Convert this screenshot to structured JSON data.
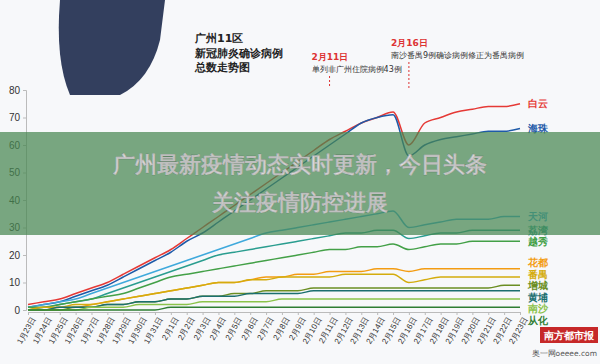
{
  "chart_data": {
    "type": "line",
    "title": "广州11区",
    "subtitle": [
      "新冠肺炎确诊病例",
      "总数走势图"
    ],
    "categories": [
      "1月23日",
      "1月24日",
      "1月25日",
      "1月26日",
      "1月27日",
      "1月28日",
      "1月29日",
      "1月30日",
      "1月31日",
      "2月1日",
      "2月2日",
      "2月3日",
      "2月4日",
      "2月5日",
      "2月6日",
      "2月7日",
      "2月8日",
      "2月9日",
      "2月10日",
      "2月11日",
      "2月12日",
      "2月13日",
      "2月14日",
      "2月15日",
      "2月16日",
      "2月17日",
      "2月18日",
      "2月19日",
      "2月20日",
      "2月21日",
      "2月22日",
      "2月23日"
    ],
    "series": [
      {
        "name": "白云",
        "color": "#e53935",
        "values": [
          2,
          3,
          4,
          6,
          8,
          10,
          13,
          16,
          19,
          22,
          26,
          30,
          34,
          38,
          42,
          46,
          50,
          54,
          58,
          62,
          65,
          68,
          70,
          72,
          60,
          68,
          70,
          72,
          73,
          74,
          74,
          75
        ]
      },
      {
        "name": "海珠",
        "color": "#1e5aa8",
        "values": [
          1,
          2,
          3,
          5,
          7,
          9,
          12,
          15,
          18,
          21,
          25,
          28,
          32,
          36,
          40,
          44,
          48,
          52,
          56,
          60,
          64,
          68,
          70,
          71,
          56,
          60,
          62,
          63,
          64,
          65,
          65,
          66
        ]
      },
      {
        "name": "天河",
        "color": "#3fa9dc",
        "values": [
          1,
          2,
          3,
          4,
          6,
          8,
          10,
          12,
          14,
          16,
          18,
          20,
          22,
          24,
          26,
          28,
          29,
          30,
          31,
          32,
          33,
          34,
          35,
          36,
          30,
          31,
          32,
          33,
          33,
          33,
          34,
          34
        ]
      },
      {
        "name": "荔湾",
        "color": "#2a9d8f",
        "values": [
          0,
          1,
          2,
          3,
          4,
          6,
          8,
          10,
          12,
          14,
          16,
          18,
          20,
          21,
          22,
          23,
          24,
          25,
          26,
          27,
          28,
          28,
          29,
          29,
          26,
          27,
          28,
          28,
          29,
          29,
          29,
          29
        ]
      },
      {
        "name": "越秀",
        "color": "#43a047",
        "values": [
          1,
          1,
          2,
          3,
          4,
          5,
          6,
          8,
          10,
          12,
          13,
          14,
          15,
          16,
          17,
          18,
          19,
          20,
          21,
          22,
          22,
          23,
          23,
          24,
          22,
          23,
          24,
          24,
          25,
          25,
          25,
          25
        ]
      },
      {
        "name": "花都",
        "color": "#f39c12",
        "values": [
          0,
          0,
          1,
          1,
          2,
          3,
          4,
          5,
          6,
          7,
          8,
          9,
          10,
          10,
          11,
          12,
          12,
          13,
          13,
          14,
          14,
          14,
          15,
          15,
          14,
          15,
          15,
          15,
          15,
          15,
          15,
          15
        ]
      },
      {
        "name": "番禺",
        "color": "#d4ac0d",
        "values": [
          0,
          1,
          1,
          2,
          2,
          3,
          4,
          5,
          6,
          7,
          8,
          9,
          10,
          10,
          11,
          11,
          12,
          12,
          12,
          12,
          13,
          13,
          13,
          13,
          10,
          11,
          12,
          12,
          12,
          12,
          12,
          12
        ]
      },
      {
        "name": "增城",
        "color": "#6b8e23",
        "values": [
          0,
          0,
          0,
          1,
          1,
          2,
          2,
          3,
          3,
          4,
          4,
          5,
          5,
          6,
          6,
          7,
          7,
          7,
          8,
          8,
          8,
          8,
          8,
          8,
          8,
          8,
          8,
          8,
          8,
          8,
          9,
          9
        ]
      },
      {
        "name": "黄埔",
        "color": "#1b6f6f",
        "values": [
          0,
          0,
          1,
          1,
          1,
          2,
          2,
          3,
          3,
          4,
          4,
          5,
          5,
          5,
          6,
          6,
          6,
          6,
          7,
          7,
          7,
          7,
          7,
          7,
          7,
          7,
          7,
          7,
          7,
          7,
          7,
          7
        ]
      },
      {
        "name": "南沙",
        "color": "#8bc34a",
        "values": [
          0,
          0,
          0,
          0,
          1,
          1,
          1,
          2,
          2,
          2,
          2,
          3,
          3,
          3,
          3,
          3,
          4,
          4,
          4,
          4,
          4,
          4,
          4,
          4,
          4,
          4,
          4,
          4,
          4,
          4,
          4,
          4
        ]
      },
      {
        "name": "从化",
        "color": "#2e7d32",
        "values": [
          0,
          0,
          0,
          0,
          0,
          0,
          0,
          0,
          0,
          1,
          1,
          1,
          1,
          1,
          1,
          1,
          1,
          1,
          1,
          1,
          1,
          1,
          1,
          1,
          1,
          1,
          1,
          1,
          1,
          1,
          1,
          1
        ]
      }
    ],
    "ylim": [
      0,
      80
    ],
    "yticks": [
      0,
      10,
      20,
      30,
      40,
      50,
      60,
      70,
      80
    ],
    "grid": false,
    "annotations": [
      {
        "date": "2月11日",
        "text": "单列非广州住院病例43例"
      },
      {
        "date": "2月16日",
        "text": "南沙番禺9例确诊病例修正为番禺病例"
      }
    ],
    "banner": [
      "广州最新疫情动态实时更新，今日头条",
      "关注疫情防控进展"
    ],
    "source": [
      "南方都市报",
      "奥一网oeeee.com"
    ]
  }
}
